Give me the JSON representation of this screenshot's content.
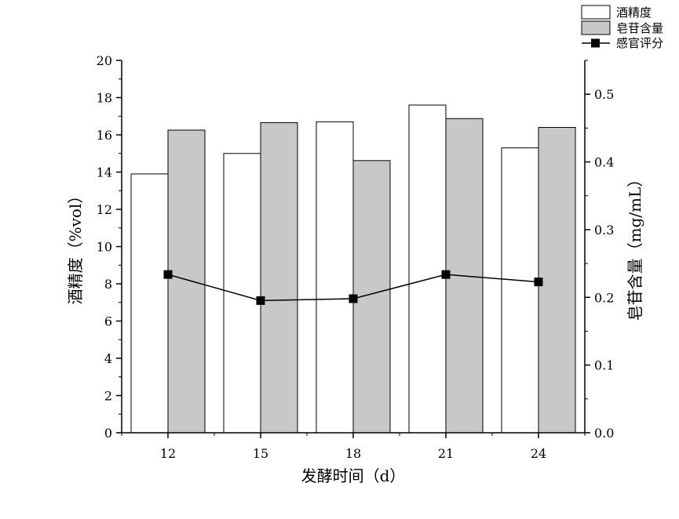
{
  "chart_data": {
    "type": "bar",
    "categories": [
      "12",
      "15",
      "18",
      "21",
      "24"
    ],
    "xlabel": "发酵时间（d）",
    "ylabel_left": "酒精度（%vol）",
    "ylabel_right": "皂苷含量（mg/mL）",
    "ylim_left": [
      0,
      20
    ],
    "ylim_right": [
      0,
      0.55
    ],
    "yticks_left": [
      "0",
      "2",
      "4",
      "6",
      "8",
      "10",
      "12",
      "14",
      "16",
      "18",
      "20"
    ],
    "yticks_right": [
      "0.0",
      "0.1",
      "0.2",
      "0.3",
      "0.4",
      "0.5"
    ],
    "legend_position": "top-right",
    "grid": false,
    "series": [
      {
        "name": "酒精度",
        "kind": "bar",
        "axis": "left",
        "color": "#ffffff",
        "values": [
          13.9,
          15.0,
          16.7,
          17.6,
          15.3
        ]
      },
      {
        "name": "皂苷含量",
        "kind": "bar",
        "axis": "right",
        "color": "#c8c8c8",
        "values": [
          0.447,
          0.458,
          0.402,
          0.464,
          0.451
        ]
      },
      {
        "name": "感官评分",
        "kind": "line",
        "axis": "left",
        "color": "#000000",
        "marker": "square",
        "values": [
          8.5,
          7.1,
          7.2,
          8.5,
          8.1
        ]
      }
    ]
  }
}
